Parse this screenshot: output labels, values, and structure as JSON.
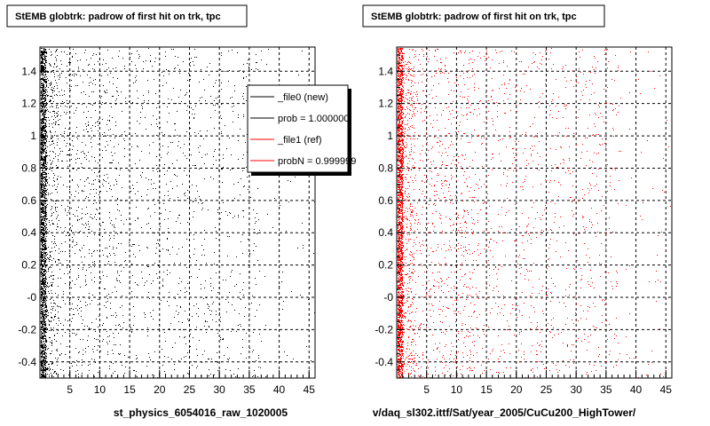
{
  "footer_text": "",
  "chart_data": [
    {
      "type": "scatter",
      "title": "StEMB globtrk: padrow of first hit on trk, tpc",
      "xlabel": "st_physics_6054016_raw_1020005",
      "ylabel": "",
      "xlim": [
        0,
        46
      ],
      "ylim": [
        -0.5,
        1.55
      ],
      "xticks": [
        5,
        10,
        15,
        20,
        25,
        30,
        35,
        40,
        45
      ],
      "xtick_labels": [
        "5",
        "10",
        "15",
        "20",
        "25",
        "30",
        "35",
        "40",
        "45"
      ],
      "yticks": [
        -0.4,
        -0.2,
        0,
        0.2,
        0.4,
        0.6,
        0.8,
        1.0,
        1.2,
        1.4
      ],
      "ytick_labels": [
        "-0.4",
        "-0.2",
        "-0",
        "0.2",
        "0.4",
        "0.6",
        "0.8",
        "1",
        "1.2",
        "1.4"
      ],
      "grid": true,
      "marker_color": "#000000",
      "series": [
        {
          "color": "#000000",
          "density": [
            {
              "x": [
                0,
                1
              ],
              "relative_density": 1.0
            },
            {
              "x": [
                1,
                3
              ],
              "relative_density": 0.35
            },
            {
              "x": [
                3,
                13
              ],
              "relative_density": 0.12
            },
            {
              "x": [
                13,
                37
              ],
              "relative_density": 0.06
            },
            {
              "x": [
                37,
                46
              ],
              "relative_density": 0.01
            }
          ],
          "y_range": [
            -0.5,
            1.55
          ]
        }
      ],
      "legend": {
        "placement": "top-right",
        "entries": [
          {
            "label": "_file0 (new)",
            "color": "#000000"
          },
          {
            "label": "prob = 1.000000",
            "color": "#000000"
          },
          {
            "label": "_file1 (ref)",
            "color": "#ff0000"
          },
          {
            "label": "probN = 0.999999",
            "color": "#ff0000"
          }
        ]
      }
    },
    {
      "type": "scatter",
      "title": "StEMB globtrk: padrow of first hit on trk, tpc",
      "xlabel": "v/daq_sl302.ittf/Sat/year_2005/CuCu200_HighTower/",
      "ylabel": "",
      "xlim": [
        0,
        46
      ],
      "ylim": [
        -0.5,
        1.55
      ],
      "xticks": [
        5,
        10,
        15,
        20,
        25,
        30,
        35,
        40,
        45
      ],
      "xtick_labels": [
        "5",
        "10",
        "15",
        "20",
        "25",
        "30",
        "35",
        "40",
        "45"
      ],
      "yticks": [
        -0.4,
        -0.2,
        0,
        0.2,
        0.4,
        0.6,
        0.8,
        1.0,
        1.2,
        1.4
      ],
      "ytick_labels": [
        "-0.4",
        "-0.2",
        "-0",
        "0.2",
        "0.4",
        "0.6",
        "0.8",
        "1",
        "1.2",
        "1.4"
      ],
      "grid": true,
      "marker_color": "#ff0000",
      "series": [
        {
          "color": "#ff0000",
          "density": [
            {
              "x": [
                0,
                1
              ],
              "relative_density": 1.0
            },
            {
              "x": [
                1,
                3
              ],
              "relative_density": 0.35
            },
            {
              "x": [
                3,
                13
              ],
              "relative_density": 0.12
            },
            {
              "x": [
                13,
                37
              ],
              "relative_density": 0.06
            },
            {
              "x": [
                37,
                46
              ],
              "relative_density": 0.01
            }
          ],
          "y_range": [
            -0.5,
            1.55
          ]
        }
      ]
    }
  ]
}
